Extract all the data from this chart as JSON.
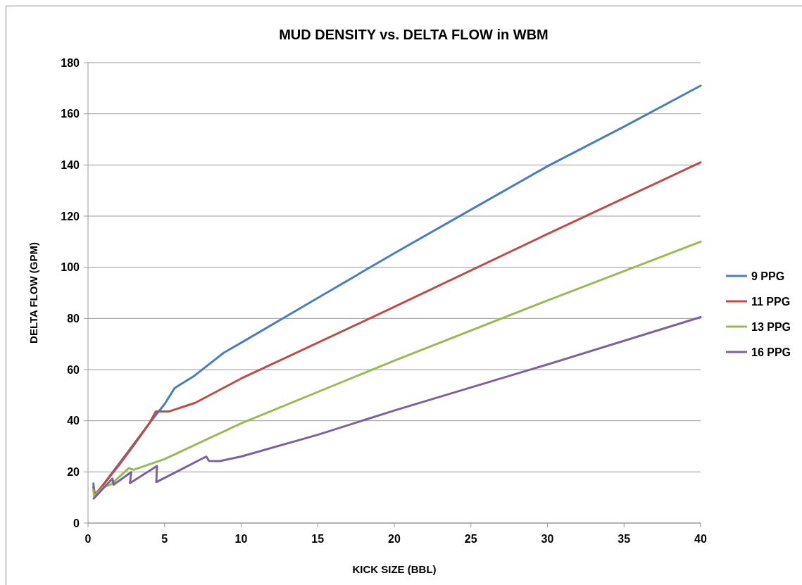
{
  "chart_data": {
    "type": "line",
    "title": "MUD DENSITY vs. DELTA FLOW in WBM",
    "xlabel": "KICK SIZE (BBL)",
    "ylabel": "DELTA FLOW (GPM)",
    "xlim": [
      0,
      40
    ],
    "ylim": [
      0,
      180
    ],
    "xticks": [
      0,
      5,
      10,
      15,
      20,
      25,
      30,
      35,
      40
    ],
    "yticks": [
      0,
      20,
      40,
      60,
      80,
      100,
      120,
      140,
      160,
      180
    ],
    "grid": "y",
    "legend": "right",
    "marker": "none",
    "line_style": "solid",
    "series": [
      {
        "name": "9 PPG",
        "color": "#4a7ebb",
        "x": [
          0.35,
          0.45,
          1,
          2,
          3,
          4,
          5,
          5.66,
          6.88,
          8.87,
          10,
          15,
          20,
          25,
          30,
          35,
          40
        ],
        "values": [
          15.5,
          10.5,
          15,
          23,
          31,
          39,
          46.5,
          52.8,
          57.3,
          66.6,
          70.5,
          88,
          105.5,
          122.5,
          139.5,
          155,
          171
        ]
      },
      {
        "name": "11 PPG",
        "color": "#be4b48",
        "x": [
          0.35,
          0.45,
          1,
          2,
          3,
          4,
          4.43,
          5.27,
          7,
          10,
          20,
          30,
          40
        ],
        "values": [
          14,
          11,
          15,
          22.5,
          30.5,
          39,
          43.6,
          43.6,
          47,
          56.5,
          84.5,
          113,
          141
        ]
      },
      {
        "name": "13 PPG",
        "color": "#98b954",
        "x": [
          0.35,
          0.4,
          1,
          1.5,
          2.67,
          2.97,
          5,
          10,
          20,
          30,
          40
        ],
        "values": [
          13,
          10.5,
          14,
          15.1,
          21.5,
          20.8,
          25,
          39,
          63.5,
          87,
          110
        ]
      },
      {
        "name": "16 PPG",
        "color": "#7d60a0",
        "x": [
          0.37,
          1.6,
          1.67,
          2.82,
          2.74,
          4.5,
          4.46,
          7.72,
          7.9,
          8.6,
          10,
          15,
          20,
          30,
          40
        ],
        "values": [
          9.6,
          17.4,
          15,
          19.9,
          15.6,
          22.3,
          16,
          26,
          24.3,
          24.2,
          26,
          34.5,
          44,
          62,
          80.5
        ]
      }
    ]
  }
}
